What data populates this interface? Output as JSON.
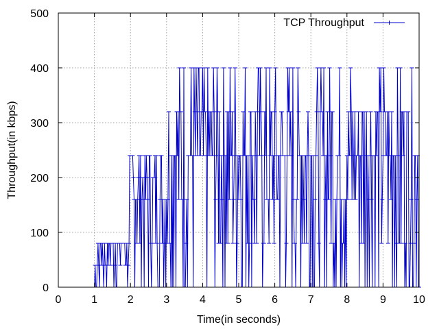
{
  "chart_data": {
    "type": "line",
    "title": "",
    "xlabel": "Time(in seconds)",
    "ylabel": "Throughput(in kbps)",
    "xlim": [
      0,
      10
    ],
    "ylim": [
      0,
      500
    ],
    "xticks": [
      0,
      1,
      2,
      3,
      4,
      5,
      6,
      7,
      8,
      9,
      10
    ],
    "yticks": [
      0,
      100,
      200,
      300,
      400,
      500
    ],
    "grid": true,
    "legend_position": "top-right",
    "sample_interval_s": 0.02,
    "series": [
      {
        "name": "TCP Throughput",
        "color": "#0000cc",
        "segments": [
          {
            "t_start": 0.5,
            "t_end": 1.02,
            "levels": [
              0
            ]
          },
          {
            "t_start": 1.02,
            "t_end": 1.1,
            "levels": [
              0,
              40
            ]
          },
          {
            "t_start": 1.1,
            "t_end": 1.98,
            "levels": [
              0,
              40,
              80,
              80,
              80
            ]
          },
          {
            "t_start": 1.98,
            "t_end": 2.06,
            "levels": [
              0,
              80,
              160,
              240
            ]
          },
          {
            "t_start": 2.06,
            "t_end": 3.0,
            "levels": [
              0,
              80,
              160,
              160,
              200,
              240,
              240
            ]
          },
          {
            "t_start": 3.0,
            "t_end": 10.0,
            "levels": [
              0,
              80,
              160,
              240,
              240,
              320,
              320,
              400
            ]
          }
        ]
      }
    ]
  }
}
